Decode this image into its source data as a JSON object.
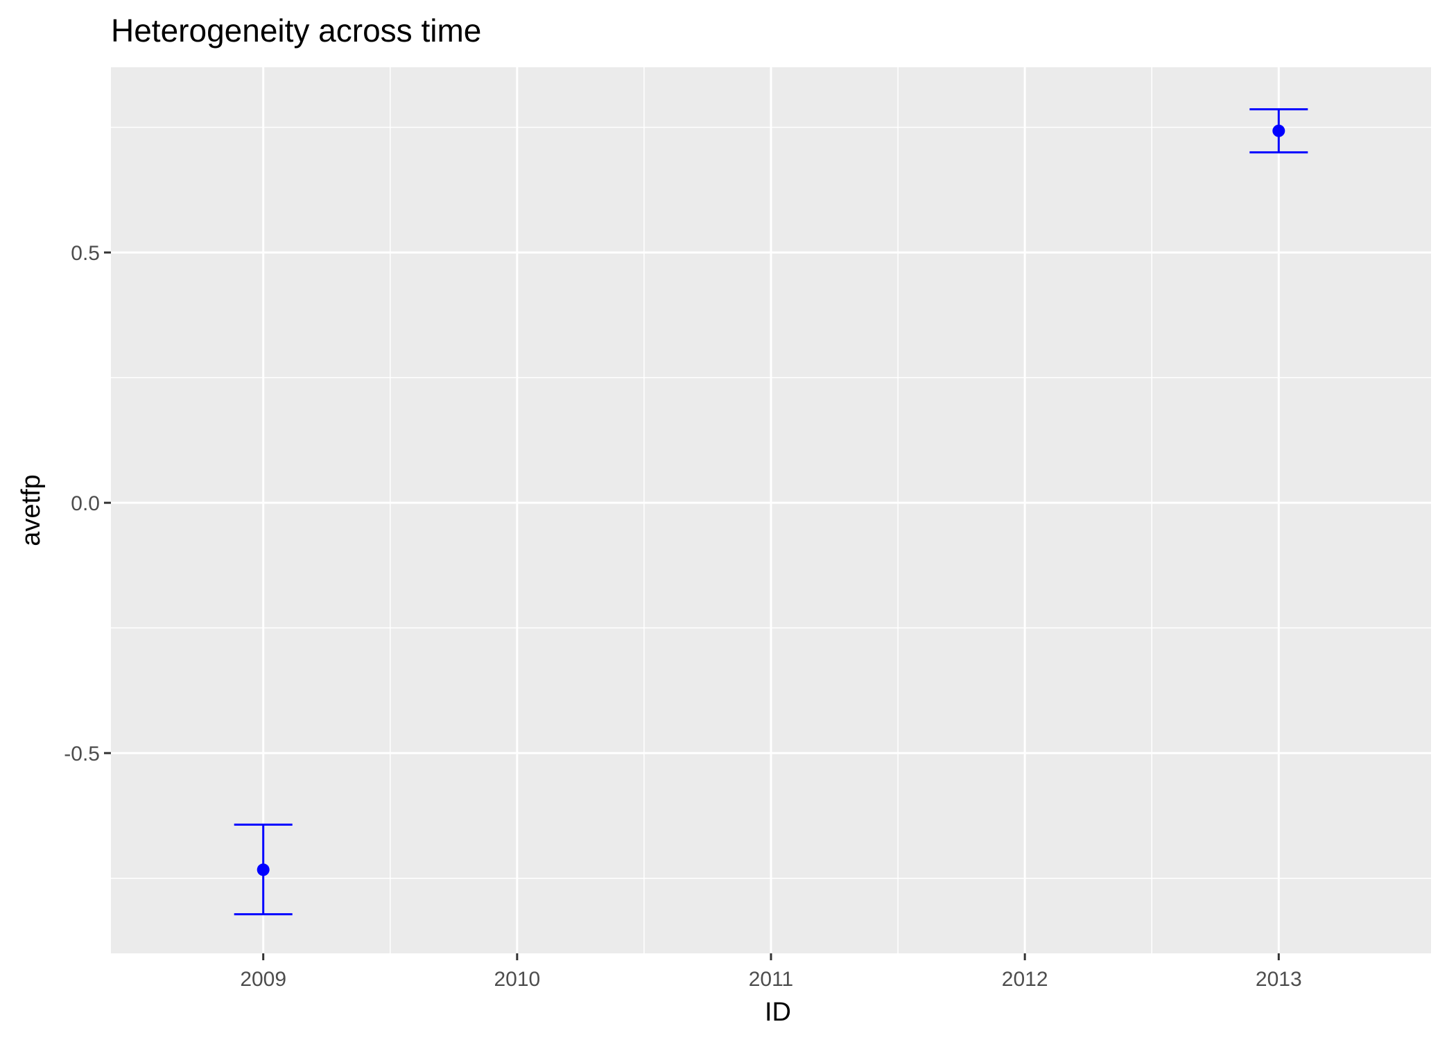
{
  "chart_data": {
    "type": "scatter",
    "title": "Heterogeneity across time",
    "xlabel": "ID",
    "ylabel": "avetfp",
    "x_categories": [
      "2009",
      "2010",
      "2011",
      "2012",
      "2013"
    ],
    "y_ticks": [
      {
        "value": -0.5,
        "label": "-0.5"
      },
      {
        "value": 0.0,
        "label": "0.0"
      },
      {
        "value": 0.5,
        "label": "0.5"
      }
    ],
    "ylim": [
      -0.9,
      0.87
    ],
    "grid": true,
    "legend": "none",
    "series": [
      {
        "color": "#0000ff",
        "points": [
          {
            "x": "2009",
            "y": -0.733,
            "ymin": -0.822,
            "ymax": -0.643
          },
          {
            "x": "2013",
            "y": 0.743,
            "ymin": 0.7,
            "ymax": 0.786
          }
        ]
      }
    ],
    "colors": {
      "panel_background": "#ebebeb",
      "grid": "#ffffff",
      "tick_text": "#4d4d4d",
      "tick_mark": "#333333"
    }
  }
}
